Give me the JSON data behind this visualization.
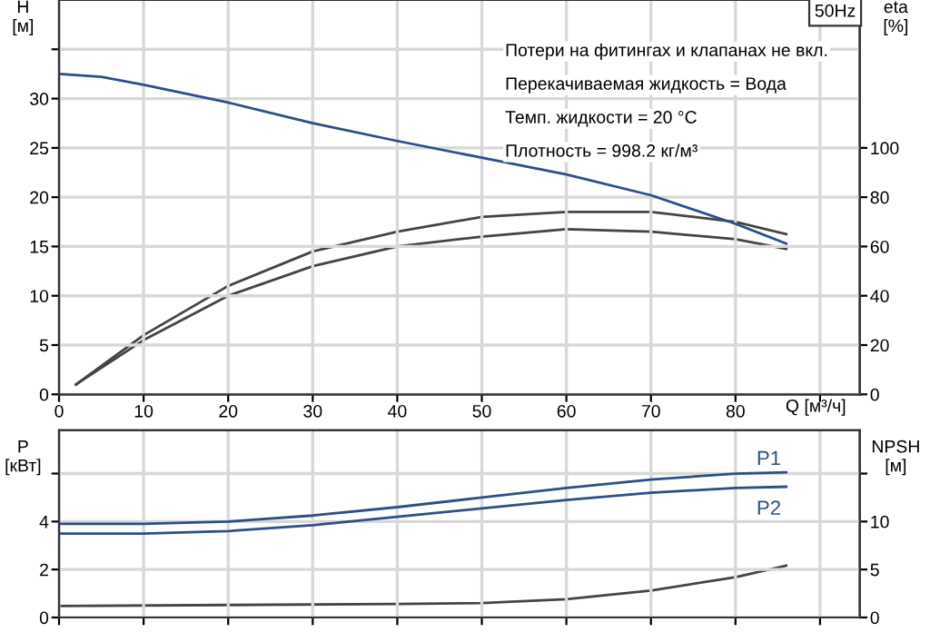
{
  "chart_data": [
    {
      "type": "line",
      "title": "50Hz",
      "xlabel": "Q [м³/ч]",
      "ylabel": "H\n[м]",
      "y2label": "eta\n[%]",
      "annotations": [
        "Потери на фитингах и клапанах не вкл.",
        "Перекачиваемая жидкость = Вода",
        "Темп. жидкости = 20 °C",
        "Плотность = 998.2 кг/м³"
      ],
      "series": [
        {
          "color": "#2d4f86",
          "x": [
            0,
            5,
            10,
            20,
            30,
            40,
            50,
            60,
            70,
            80,
            86
          ],
          "values": [
            32.5,
            32.2,
            31.4,
            29.6,
            27.5,
            25.7,
            24.0,
            22.3,
            20.2,
            17.3,
            15.3
          ]
        },
        {
          "color": "#444444",
          "axis": "y2",
          "x": [
            2,
            10,
            20,
            30,
            40,
            50,
            60,
            70,
            80,
            86
          ],
          "values": [
            4,
            24,
            44,
            58,
            66,
            72,
            74,
            74,
            70,
            65
          ]
        },
        {
          "color": "#444444",
          "axis": "y2",
          "x": [
            2,
            10,
            20,
            30,
            40,
            50,
            60,
            70,
            80,
            86
          ],
          "values": [
            4,
            22,
            40,
            52,
            60,
            64,
            67,
            66,
            63,
            59
          ]
        }
      ],
      "xlim": [
        0,
        94.7
      ],
      "xticks": [
        0,
        10,
        20,
        30,
        40,
        50,
        60,
        70,
        80,
        {
          "value": 90,
          "label": null
        }
      ],
      "ylim": [
        0,
        40
      ],
      "yticks": [
        0,
        5,
        10,
        15,
        20,
        25,
        30,
        {
          "value": 35,
          "label": null
        }
      ],
      "y2lim": [
        0,
        160
      ],
      "y2ticks": [
        0,
        20,
        40,
        60,
        80,
        100
      ],
      "grid": true,
      "legend": false
    },
    {
      "type": "line",
      "ylabel": "P\n[кВт]",
      "y2label": "NPSH\n[м]",
      "series": [
        {
          "name": "P1",
          "color": "#2d4f86",
          "x": [
            0,
            10,
            20,
            30,
            40,
            50,
            60,
            70,
            80,
            86
          ],
          "values": [
            3.9,
            3.9,
            4.0,
            4.25,
            4.6,
            5.0,
            5.4,
            5.75,
            6.0,
            6.05
          ]
        },
        {
          "name": "P2",
          "color": "#2d4f86",
          "x": [
            0,
            10,
            20,
            30,
            40,
            50,
            60,
            70,
            80,
            86
          ],
          "values": [
            3.5,
            3.5,
            3.6,
            3.85,
            4.2,
            4.55,
            4.9,
            5.2,
            5.4,
            5.45
          ]
        },
        {
          "color": "#444444",
          "axis": "y2",
          "x": [
            0,
            20,
            40,
            50,
            60,
            70,
            80,
            86
          ],
          "values": [
            1.2,
            1.3,
            1.4,
            1.5,
            1.9,
            2.8,
            4.2,
            5.4
          ]
        }
      ],
      "xlim": [
        0,
        94.7
      ],
      "xticks": [
        0,
        10,
        20,
        30,
        40,
        50,
        60,
        70,
        80,
        90
      ],
      "ylim": [
        0,
        7.8
      ],
      "yticks": [
        0,
        2,
        4,
        {
          "value": 6,
          "label": null
        }
      ],
      "y2lim": [
        0,
        19.5
      ],
      "y2ticks": [
        0,
        5,
        10,
        {
          "value": 15,
          "label": null
        }
      ],
      "tick_labels": "y",
      "grid": true,
      "legend": false
    }
  ]
}
